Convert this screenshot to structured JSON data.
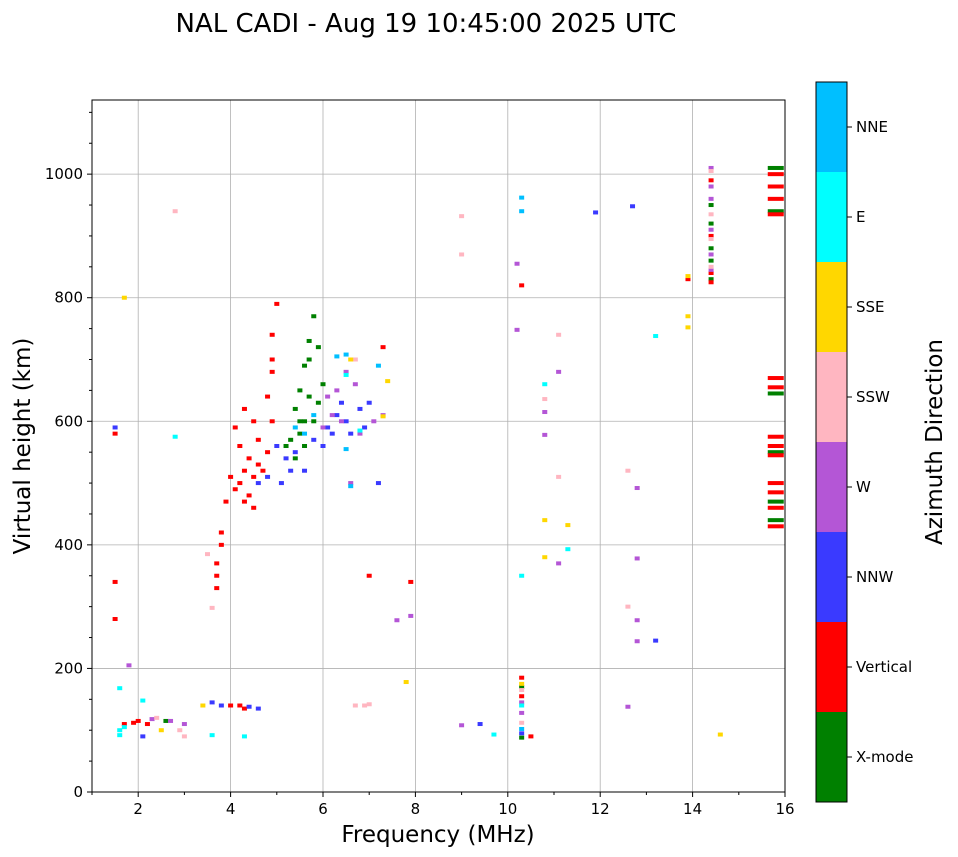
{
  "chart_data": {
    "type": "scatter",
    "title": "NAL CADI - Aug 19 10:45:00 2025 UTC",
    "xlabel": "Frequency (MHz)",
    "ylabel": "Virtual height (km)",
    "xlim": [
      1.0,
      16.0
    ],
    "ylim": [
      0,
      1120
    ],
    "xticks": [
      2,
      4,
      6,
      8,
      10,
      12,
      14,
      16
    ],
    "yticks": [
      0,
      200,
      400,
      600,
      800,
      1000
    ],
    "grid": true,
    "colorbar": {
      "label": "Azimuth Direction",
      "categories": [
        "X-mode",
        "Vertical",
        "NNW",
        "W",
        "SSW",
        "SSE",
        "E",
        "NNE"
      ],
      "colors": [
        "#008000",
        "#ff0000",
        "#3a3aff",
        "#b456d6",
        "#ffb6c1",
        "#ffd700",
        "#00ffff",
        "#00bfff"
      ]
    },
    "series": [
      {
        "name": "X-mode",
        "points": [
          [
            5.6,
            690
          ],
          [
            5.7,
            730
          ],
          [
            5.8,
            770
          ],
          [
            5.5,
            650
          ],
          [
            5.4,
            620
          ],
          [
            5.7,
            640
          ],
          [
            5.6,
            600
          ],
          [
            5.5,
            580
          ],
          [
            5.3,
            570
          ],
          [
            5.2,
            560
          ],
          [
            5.4,
            540
          ],
          [
            5.6,
            560
          ],
          [
            5.8,
            600
          ],
          [
            5.9,
            630
          ],
          [
            6.0,
            660
          ],
          [
            5.7,
            700
          ],
          [
            5.9,
            720
          ],
          [
            5.5,
            600
          ],
          [
            15.8,
            1010
          ],
          [
            15.8,
            940
          ],
          [
            15.8,
            645
          ],
          [
            15.8,
            550
          ],
          [
            15.8,
            470
          ],
          [
            15.8,
            440
          ],
          [
            14.4,
            950
          ],
          [
            14.4,
            920
          ],
          [
            14.4,
            880
          ],
          [
            14.4,
            860
          ],
          [
            14.4,
            830
          ],
          [
            10.3,
            170
          ],
          [
            2.6,
            115
          ],
          [
            10.3,
            88
          ]
        ]
      },
      {
        "name": "Vertical",
        "points": [
          [
            4.2,
            500
          ],
          [
            4.3,
            520
          ],
          [
            4.4,
            480
          ],
          [
            4.5,
            510
          ],
          [
            4.6,
            530
          ],
          [
            4.1,
            490
          ],
          [
            4.4,
            540
          ],
          [
            4.7,
            520
          ],
          [
            4.8,
            550
          ],
          [
            4.3,
            470
          ],
          [
            4.5,
            460
          ],
          [
            4.0,
            510
          ],
          [
            4.2,
            560
          ],
          [
            4.6,
            570
          ],
          [
            4.9,
            600
          ],
          [
            4.8,
            640
          ],
          [
            4.9,
            680
          ],
          [
            4.9,
            700
          ],
          [
            4.9,
            740
          ],
          [
            5.0,
            790
          ],
          [
            4.5,
            600
          ],
          [
            4.3,
            620
          ],
          [
            4.1,
            590
          ],
          [
            3.9,
            470
          ],
          [
            3.8,
            420
          ],
          [
            3.8,
            400
          ],
          [
            3.7,
            370
          ],
          [
            3.7,
            350
          ],
          [
            3.7,
            330
          ],
          [
            1.5,
            340
          ],
          [
            1.5,
            280
          ],
          [
            1.5,
            580
          ],
          [
            4.2,
            140
          ],
          [
            4.0,
            140
          ],
          [
            4.3,
            135
          ],
          [
            1.7,
            110
          ],
          [
            1.9,
            112
          ],
          [
            2.0,
            115
          ],
          [
            2.2,
            110
          ],
          [
            15.8,
            1000
          ],
          [
            15.8,
            980
          ],
          [
            15.8,
            960
          ],
          [
            15.8,
            935
          ],
          [
            15.8,
            670
          ],
          [
            15.8,
            655
          ],
          [
            15.8,
            575
          ],
          [
            15.8,
            560
          ],
          [
            15.8,
            545
          ],
          [
            15.8,
            500
          ],
          [
            15.8,
            485
          ],
          [
            15.8,
            460
          ],
          [
            15.8,
            430
          ],
          [
            10.3,
            820
          ],
          [
            10.3,
            185
          ],
          [
            10.3,
            155
          ],
          [
            10.5,
            90
          ],
          [
            7.9,
            340
          ],
          [
            7.0,
            350
          ],
          [
            7.3,
            720
          ],
          [
            14.4,
            990
          ],
          [
            14.4,
            900
          ],
          [
            14.4,
            840
          ],
          [
            14.4,
            825
          ],
          [
            13.9,
            830
          ]
        ]
      },
      {
        "name": "NNW",
        "points": [
          [
            5.0,
            560
          ],
          [
            5.2,
            540
          ],
          [
            5.3,
            520
          ],
          [
            5.4,
            550
          ],
          [
            5.1,
            500
          ],
          [
            5.6,
            520
          ],
          [
            5.8,
            570
          ],
          [
            6.1,
            590
          ],
          [
            6.3,
            610
          ],
          [
            6.5,
            600
          ],
          [
            6.2,
            580
          ],
          [
            6.0,
            560
          ],
          [
            6.4,
            630
          ],
          [
            6.6,
            580
          ],
          [
            6.8,
            620
          ],
          [
            7.0,
            630
          ],
          [
            4.6,
            500
          ],
          [
            4.8,
            510
          ],
          [
            3.6,
            145
          ],
          [
            3.8,
            140
          ],
          [
            4.4,
            138
          ],
          [
            4.6,
            135
          ],
          [
            12.7,
            948
          ],
          [
            11.9,
            938
          ],
          [
            13.2,
            245
          ],
          [
            9.4,
            110
          ],
          [
            7.2,
            500
          ],
          [
            6.9,
            590
          ],
          [
            2.1,
            90
          ],
          [
            1.5,
            590
          ],
          [
            10.3,
            95
          ]
        ]
      },
      {
        "name": "W",
        "points": [
          [
            6.0,
            590
          ],
          [
            6.2,
            610
          ],
          [
            6.3,
            650
          ],
          [
            6.5,
            680
          ],
          [
            6.7,
            660
          ],
          [
            6.1,
            640
          ],
          [
            6.4,
            600
          ],
          [
            6.8,
            580
          ],
          [
            7.1,
            600
          ],
          [
            7.3,
            610
          ],
          [
            6.6,
            500
          ],
          [
            12.8,
            492
          ],
          [
            12.8,
            378
          ],
          [
            12.8,
            278
          ],
          [
            12.8,
            244
          ],
          [
            12.6,
            138
          ],
          [
            10.2,
            855
          ],
          [
            10.2,
            748
          ],
          [
            10.8,
            615
          ],
          [
            10.8,
            578
          ],
          [
            11.1,
            680
          ],
          [
            11.1,
            370
          ],
          [
            9.0,
            108
          ],
          [
            7.6,
            278
          ],
          [
            7.9,
            285
          ],
          [
            14.4,
            1010
          ],
          [
            14.4,
            980
          ],
          [
            14.4,
            960
          ],
          [
            14.4,
            910
          ],
          [
            14.4,
            870
          ],
          [
            14.4,
            845
          ],
          [
            2.3,
            118
          ],
          [
            2.7,
            115
          ],
          [
            3.0,
            110
          ],
          [
            1.8,
            205
          ],
          [
            10.3,
            128
          ],
          [
            10.3,
            145
          ]
        ]
      },
      {
        "name": "SSW",
        "points": [
          [
            2.8,
            940
          ],
          [
            9.0,
            932
          ],
          [
            9.0,
            870
          ],
          [
            10.8,
            636
          ],
          [
            11.1,
            740
          ],
          [
            11.1,
            510
          ],
          [
            12.6,
            520
          ],
          [
            12.6,
            300
          ],
          [
            3.5,
            385
          ],
          [
            3.6,
            298
          ],
          [
            6.7,
            140
          ],
          [
            6.9,
            140
          ],
          [
            7.0,
            142
          ],
          [
            2.4,
            120
          ],
          [
            2.9,
            100
          ],
          [
            3.0,
            90
          ],
          [
            14.4,
            1005
          ],
          [
            14.4,
            935
          ],
          [
            14.4,
            895
          ],
          [
            14.4,
            850
          ],
          [
            10.3,
            165
          ],
          [
            6.7,
            700
          ],
          [
            10.3,
            112
          ]
        ]
      },
      {
        "name": "SSE",
        "points": [
          [
            1.7,
            800
          ],
          [
            7.4,
            665
          ],
          [
            7.8,
            178
          ],
          [
            10.8,
            440
          ],
          [
            10.8,
            380
          ],
          [
            11.3,
            432
          ],
          [
            13.9,
            770
          ],
          [
            13.9,
            752
          ],
          [
            13.9,
            835
          ],
          [
            14.6,
            93
          ],
          [
            2.5,
            100
          ],
          [
            3.4,
            140
          ],
          [
            7.3,
            608
          ],
          [
            6.6,
            700
          ],
          [
            10.3,
            175
          ]
        ]
      },
      {
        "name": "E",
        "points": [
          [
            1.6,
            168
          ],
          [
            1.6,
            100
          ],
          [
            1.6,
            92
          ],
          [
            2.1,
            148
          ],
          [
            2.8,
            575
          ],
          [
            3.6,
            92
          ],
          [
            4.3,
            90
          ],
          [
            10.3,
            350
          ],
          [
            10.8,
            660
          ],
          [
            11.3,
            393
          ],
          [
            13.2,
            738
          ],
          [
            9.7,
            93
          ],
          [
            6.5,
            675
          ],
          [
            6.8,
            585
          ],
          [
            10.3,
            140
          ],
          [
            1.7,
            105
          ]
        ]
      },
      {
        "name": "NNE",
        "points": [
          [
            10.3,
            962
          ],
          [
            10.3,
            940
          ],
          [
            6.6,
            495
          ],
          [
            6.5,
            555
          ],
          [
            6.3,
            705
          ],
          [
            6.5,
            708
          ],
          [
            7.2,
            690
          ],
          [
            5.6,
            580
          ],
          [
            5.4,
            590
          ],
          [
            5.8,
            610
          ],
          [
            10.3,
            102
          ]
        ]
      }
    ]
  }
}
